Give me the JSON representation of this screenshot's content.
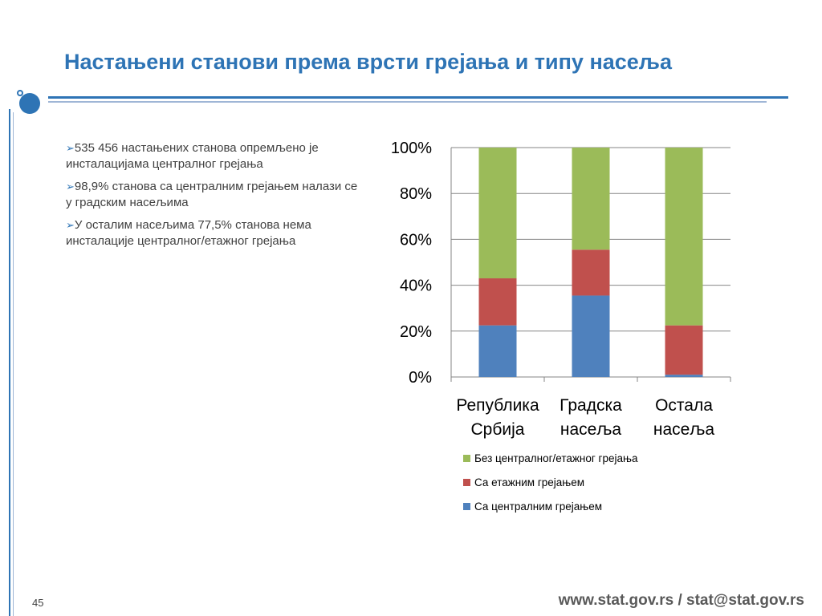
{
  "slide": {
    "title": "Настањени станови према врсти грејања и типу насеља",
    "bullets": [
      "535 456 настањених станова опремљено је инсталацијама централног грејања",
      "98,9% станова са централним грејањем налази се у градским насељима",
      "У осталим насељима 77,5% станова нема инсталације централног/етажног грејања"
    ],
    "bullet_glyph": "➢",
    "page_number": "45",
    "footer": "www.stat.gov.rs / stat@stat.gov.rs"
  },
  "chart_data": {
    "type": "bar",
    "stacked": true,
    "percent": true,
    "categories": [
      [
        "Република",
        "Србија"
      ],
      [
        "Градска",
        "насеља"
      ],
      [
        "Остала",
        "насеља"
      ]
    ],
    "series": [
      {
        "name": "Са централним грејањем",
        "color": "#4f81bd",
        "values": [
          22.5,
          35.5,
          1.0
        ]
      },
      {
        "name": "Са етажним грејањем",
        "color": "#c0504d",
        "values": [
          20.5,
          20.0,
          21.5
        ]
      },
      {
        "name": "Без централног/етажног грејања",
        "color": "#9bbb59",
        "values": [
          57.0,
          44.5,
          77.5
        ]
      }
    ],
    "yticks": [
      "0%",
      "20%",
      "40%",
      "60%",
      "80%",
      "100%"
    ],
    "ylim": [
      0,
      100
    ],
    "grid": true,
    "legend_order": [
      2,
      1,
      0
    ],
    "legend_position": "bottom"
  }
}
